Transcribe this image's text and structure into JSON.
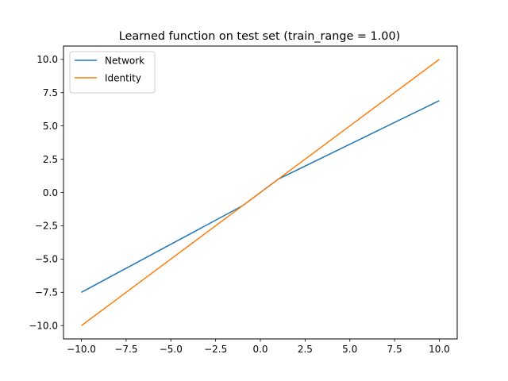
{
  "chart_data": {
    "type": "line",
    "title": "Learned function on test set (train_range = 1.00)",
    "xlabel": "",
    "ylabel": "",
    "xlim": [
      -11.0,
      11.0
    ],
    "ylim": [
      -11.0,
      11.0
    ],
    "x_ticks": [
      -10.0,
      -7.5,
      -5.0,
      -2.5,
      0.0,
      2.5,
      5.0,
      7.5,
      10.0
    ],
    "x_tick_labels": [
      "−10.0",
      "−7.5",
      "−5.0",
      "−2.5",
      "0.0",
      "2.5",
      "5.0",
      "7.5",
      "10.0"
    ],
    "y_ticks": [
      -10.0,
      -7.5,
      -5.0,
      -2.5,
      0.0,
      2.5,
      5.0,
      7.5,
      10.0
    ],
    "y_tick_labels": [
      "−10.0",
      "−7.5",
      "−5.0",
      "−2.5",
      "0.0",
      "2.5",
      "5.0",
      "7.5",
      "10.0"
    ],
    "grid": false,
    "legend_position": "top-left",
    "series": [
      {
        "name": "Network",
        "color": "#1f77b4",
        "points": [
          [
            -10.0,
            -7.5
          ],
          [
            -1.0,
            -1.0
          ],
          [
            1.0,
            1.0
          ],
          [
            10.0,
            6.9
          ]
        ]
      },
      {
        "name": "Identity",
        "color": "#ff7f0e",
        "points": [
          [
            -10.0,
            -10.0
          ],
          [
            10.0,
            10.0
          ]
        ]
      }
    ]
  }
}
